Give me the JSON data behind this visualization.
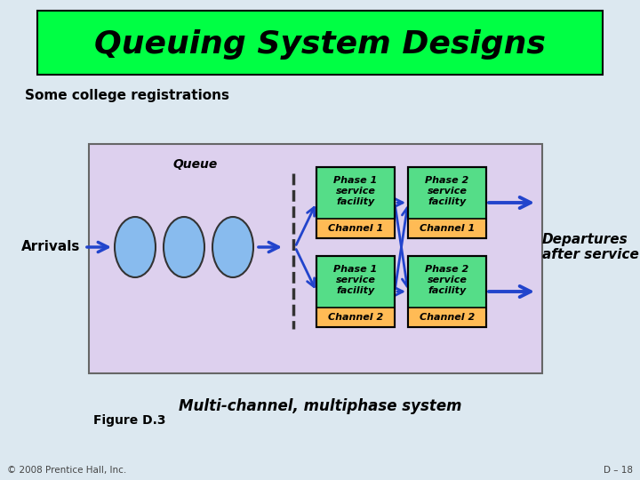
{
  "title": "Queuing System Designs",
  "title_bg": "#00ff44",
  "title_fontsize": 26,
  "subtitle": "Some college registrations",
  "subtitle_fontsize": 11,
  "bg_color": "#ddd0ee",
  "slide_bg": "#dce8f0",
  "queue_label": "Queue",
  "arrivals_label": "Arrivals",
  "departures_label": "Departures\nafter service",
  "phase1_ch1_top": "Phase 1\nservice\nfacility",
  "phase1_ch1_bot": "Channel 1",
  "phase1_ch2_top": "Phase 1\nservice\nfacility",
  "phase1_ch2_bot": "Channel 2",
  "phase2_ch1_top": "Phase 2\nservice\nfacility",
  "phase2_ch1_bot": "Channel 1",
  "phase2_ch2_top": "Phase 2\nservice\nfacility",
  "phase2_ch2_bot": "Channel 2",
  "box_face": "#55dd88",
  "box_edge": "#000000",
  "channel_bg": "#ffbb55",
  "arrow_color": "#2244cc",
  "ellipse_face": "#88bbee",
  "ellipse_edge": "#333333",
  "dashed_line_color": "#333333",
  "figure_label": "Figure D.3",
  "caption": "Multi-channel, multiphase system",
  "copyright": "© 2008 Prentice Hall, Inc.",
  "page": "D – 18"
}
